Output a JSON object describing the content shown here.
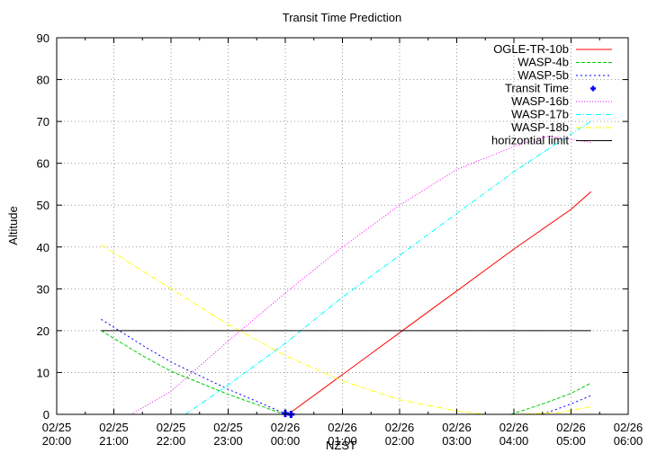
{
  "chart_data": {
    "type": "line",
    "title": "Transit Time Prediction",
    "xlabel": "NZST",
    "ylabel": "Altitude",
    "ylim": [
      0,
      90
    ],
    "yticks": [
      0,
      10,
      20,
      30,
      40,
      50,
      60,
      70,
      80,
      90
    ],
    "xlim_hours": [
      0,
      10
    ],
    "xtick_labels": [
      [
        "02/25",
        "20:00"
      ],
      [
        "02/25",
        "21:00"
      ],
      [
        "02/25",
        "22:00"
      ],
      [
        "02/25",
        "23:00"
      ],
      [
        "02/26",
        "00:00"
      ],
      [
        "02/26",
        "01:00"
      ],
      [
        "02/26",
        "02:00"
      ],
      [
        "02/26",
        "03:00"
      ],
      [
        "02/26",
        "04:00"
      ],
      [
        "02/26",
        "05:00"
      ],
      [
        "02/26",
        "06:00"
      ]
    ],
    "grid": true,
    "legend_position": "top-right",
    "series": [
      {
        "name": "OGLE-TR-10b",
        "color": "#ff0000",
        "dash": "",
        "points": [
          [
            4.05,
            0
          ],
          [
            5,
            9.5
          ],
          [
            6,
            19.5
          ],
          [
            7,
            29.5
          ],
          [
            8,
            39.5
          ],
          [
            9,
            49
          ],
          [
            9.35,
            53.2
          ]
        ]
      },
      {
        "name": "WASP-4b",
        "color": "#00cc00",
        "dash": "4,2",
        "points": [
          [
            0.78,
            20
          ],
          [
            1.5,
            14
          ],
          [
            2,
            10.3
          ],
          [
            3,
            4.8
          ],
          [
            3.9,
            0.4
          ],
          [
            4.05,
            0
          ]
        ]
      },
      {
        "name": "WASP-5b",
        "color": "#0000ff",
        "dash": "2,3",
        "points": [
          [
            0.78,
            22.7
          ],
          [
            1.5,
            16.5
          ],
          [
            2,
            12.5
          ],
          [
            3,
            6
          ],
          [
            4,
            0.2
          ]
        ]
      },
      {
        "name": "WASP-4b-rise",
        "color": "#00cc00",
        "dash": "4,2",
        "legend": false,
        "points": [
          [
            7.95,
            0
          ],
          [
            8.5,
            2.5
          ],
          [
            9,
            5
          ],
          [
            9.35,
            7.5
          ]
        ]
      },
      {
        "name": "WASP-5b-rise",
        "color": "#0000ff",
        "dash": "2,3",
        "legend": false,
        "points": [
          [
            8.5,
            0
          ],
          [
            9,
            2.5
          ],
          [
            9.35,
            4.5
          ]
        ]
      },
      {
        "name": "WASP-16b",
        "color": "#ff00ff",
        "dash": "1,2",
        "points": [
          [
            1.3,
            0
          ],
          [
            2,
            5.5
          ],
          [
            3,
            17.5
          ],
          [
            4,
            29
          ],
          [
            5,
            40
          ],
          [
            6,
            50
          ],
          [
            7,
            58.5
          ],
          [
            8,
            64
          ],
          [
            8.6,
            66.5
          ],
          [
            9.35,
            65
          ]
        ]
      },
      {
        "name": "WASP-17b",
        "color": "#00ffff",
        "dash": "6,2,1,2",
        "points": [
          [
            2.25,
            0
          ],
          [
            3,
            7
          ],
          [
            4,
            17
          ],
          [
            5,
            28
          ],
          [
            6,
            38
          ],
          [
            7,
            48
          ],
          [
            8,
            58
          ],
          [
            9,
            67
          ],
          [
            9.35,
            70
          ]
        ]
      },
      {
        "name": "WASP-18b",
        "color": "#ffff00",
        "dash": "6,2,1,2",
        "points": [
          [
            0.78,
            40.5
          ],
          [
            2,
            30
          ],
          [
            3,
            21.5
          ],
          [
            4,
            14
          ],
          [
            5,
            8
          ],
          [
            6,
            3.5
          ],
          [
            7,
            0.8
          ],
          [
            7.5,
            0
          ],
          [
            8,
            0
          ],
          [
            8.8,
            0.4
          ],
          [
            9.35,
            1.8
          ]
        ]
      },
      {
        "name": "horizontial limit",
        "color": "#000000",
        "dash": "",
        "points": [
          [
            0.78,
            20
          ],
          [
            9.35,
            20
          ]
        ]
      }
    ],
    "markers": [
      {
        "name": "Transit Time",
        "color": "#0000ff",
        "symbol": "+",
        "points": [
          [
            4.0,
            0.2
          ],
          [
            4.1,
            0
          ]
        ]
      }
    ]
  }
}
